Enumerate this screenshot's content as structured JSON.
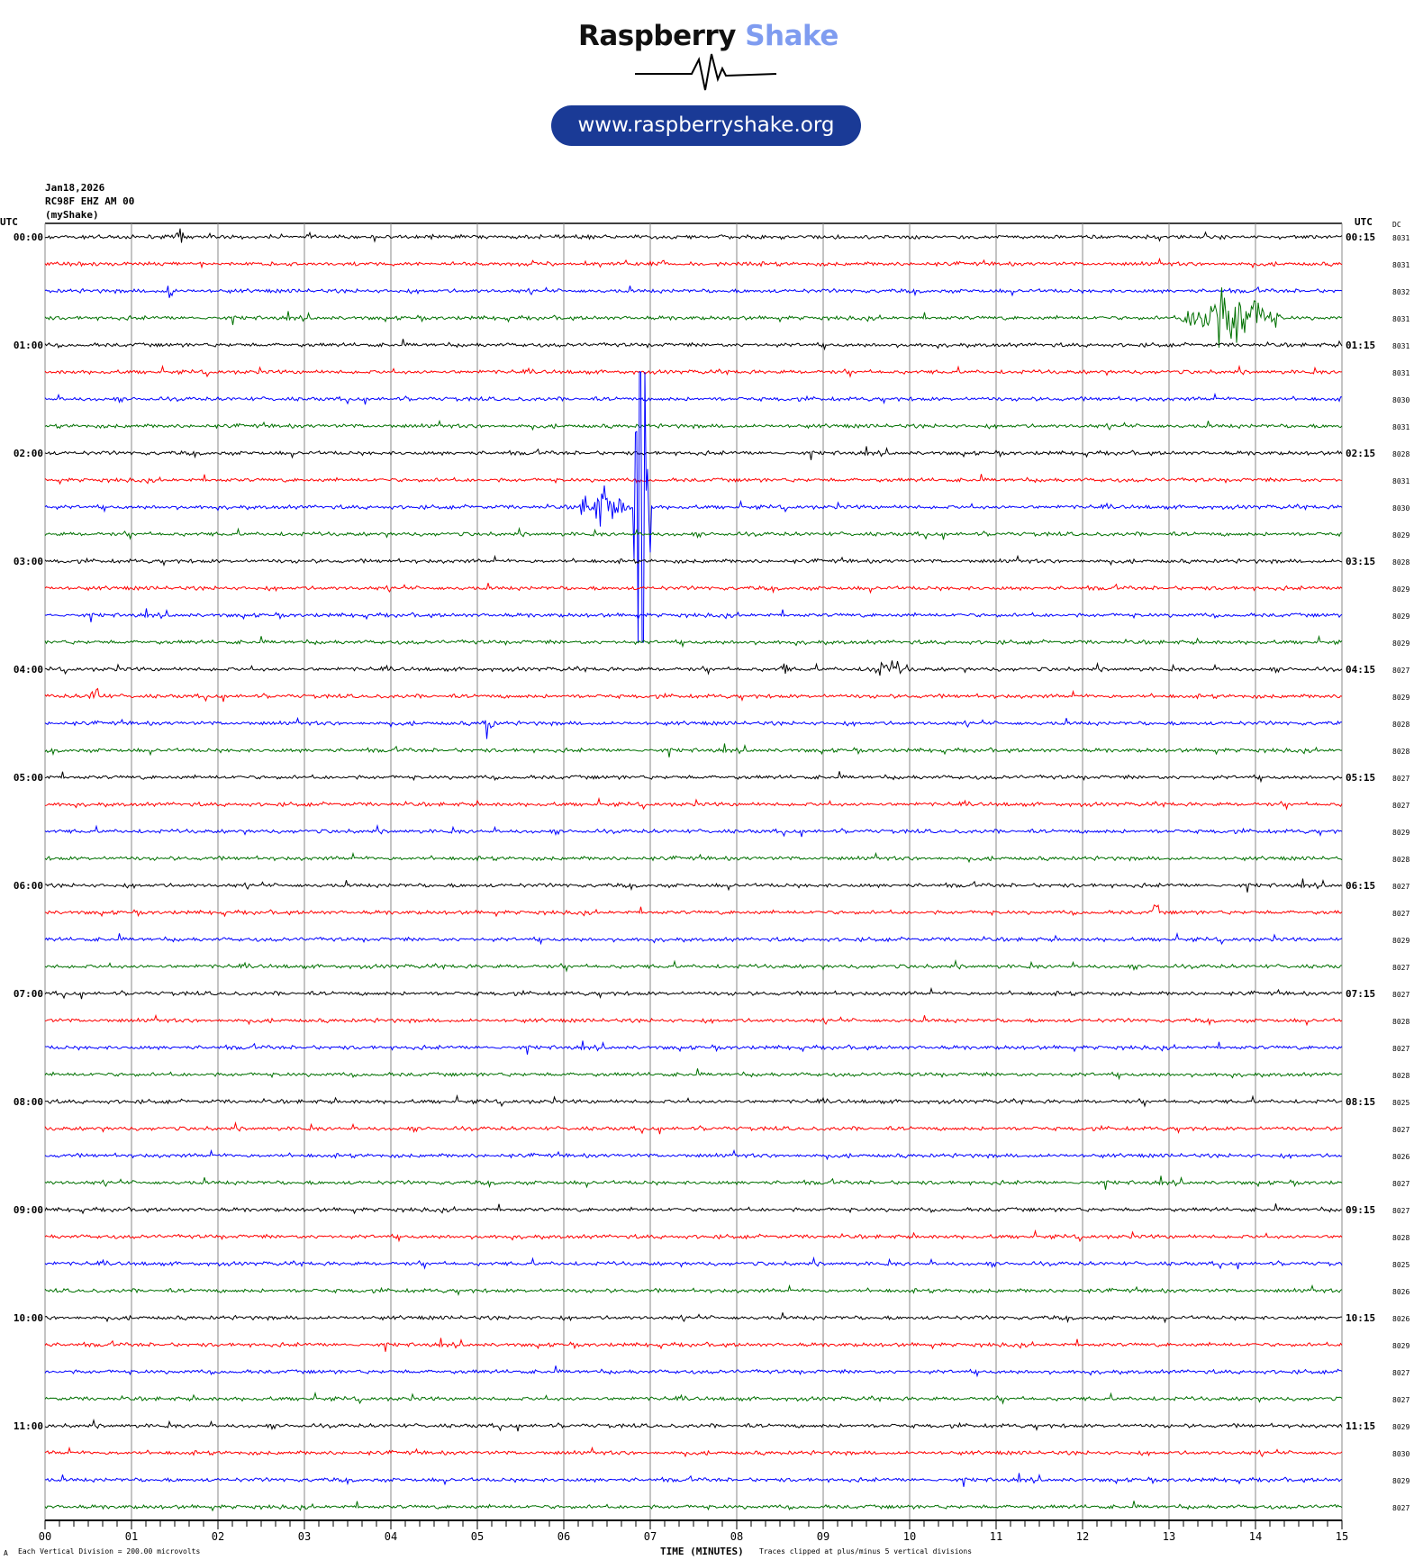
{
  "logo": {
    "brand_primary": "Raspberry",
    "brand_secondary": "Shake",
    "url": "www.raspberryshake.org"
  },
  "header": {
    "date": "Jan18,2026",
    "station": "RC98F EHZ AM 00",
    "source": "(myShake)"
  },
  "chart_data": {
    "type": "line",
    "title": "",
    "xlabel": "TIME (MINUTES)",
    "xlim": [
      0,
      15
    ],
    "x_ticks": [
      "00",
      "01",
      "02",
      "03",
      "04",
      "05",
      "06",
      "07",
      "08",
      "09",
      "10",
      "11",
      "12",
      "13",
      "14",
      "15"
    ],
    "left_axis_title": "UTC",
    "right_axis_title": "UTC",
    "dc_title": "DC",
    "left_hour_labels": [
      "00:00",
      "01:00",
      "02:00",
      "03:00",
      "04:00",
      "05:00",
      "06:00",
      "07:00",
      "08:00",
      "09:00",
      "10:00",
      "11:00"
    ],
    "right_hour_labels": [
      "00:15",
      "01:15",
      "02:15",
      "03:15",
      "04:15",
      "05:15",
      "06:15",
      "07:15",
      "08:15",
      "09:15",
      "10:15",
      "11:15"
    ],
    "trace_colors": [
      "#000000",
      "#ff0000",
      "#0000ff",
      "#007000"
    ],
    "dc_values": [
      "8031",
      "8031",
      "8032",
      "8031",
      "8031",
      "8031",
      "8030",
      "8031",
      "8028",
      "8031",
      "8030",
      "8029",
      "8028",
      "8029",
      "8029",
      "8029",
      "8027",
      "8029",
      "8028",
      "8028",
      "8027",
      "8027",
      "8029",
      "8028",
      "8027",
      "8027",
      "8029",
      "8027",
      "8027",
      "8028",
      "8027",
      "8028",
      "8025",
      "8027",
      "8026",
      "8027",
      "8027",
      "8028",
      "8025",
      "8026",
      "8026",
      "8029",
      "8027",
      "8027",
      "8029",
      "8030",
      "8029",
      "8027"
    ],
    "events": [
      {
        "row": 0,
        "start_min": 1.5,
        "end_min": 1.7,
        "amplitude_div": 0.2
      },
      {
        "row": 2,
        "start_min": 1.4,
        "end_min": 1.5,
        "amplitude_div": 0.3
      },
      {
        "row": 3,
        "start_min": 13.1,
        "end_min": 14.3,
        "amplitude_div": 0.6
      },
      {
        "row": 10,
        "start_min": 6.1,
        "end_min": 6.8,
        "amplitude_div": 0.4
      },
      {
        "row": 10,
        "start_min": 6.8,
        "end_min": 7.0,
        "amplitude_div": 5,
        "clipped": true
      },
      {
        "row": 16,
        "start_min": 8.5,
        "end_min": 8.6,
        "amplitude_div": 0.25
      },
      {
        "row": 16,
        "start_min": 9.4,
        "end_min": 10.1,
        "amplitude_div": 0.15
      },
      {
        "row": 17,
        "start_min": 0.5,
        "end_min": 0.7,
        "amplitude_div": 0.25
      },
      {
        "row": 18,
        "start_min": 5.05,
        "end_min": 5.2,
        "amplitude_div": 0.35
      },
      {
        "row": 25,
        "start_min": 12.8,
        "end_min": 12.9,
        "amplitude_div": 0.2
      }
    ]
  },
  "footer": {
    "scale_note": "Each Vertical Division =  200.00 microvolts",
    "clip_note": "Traces clipped at plus/minus 5 vertical divisions"
  }
}
